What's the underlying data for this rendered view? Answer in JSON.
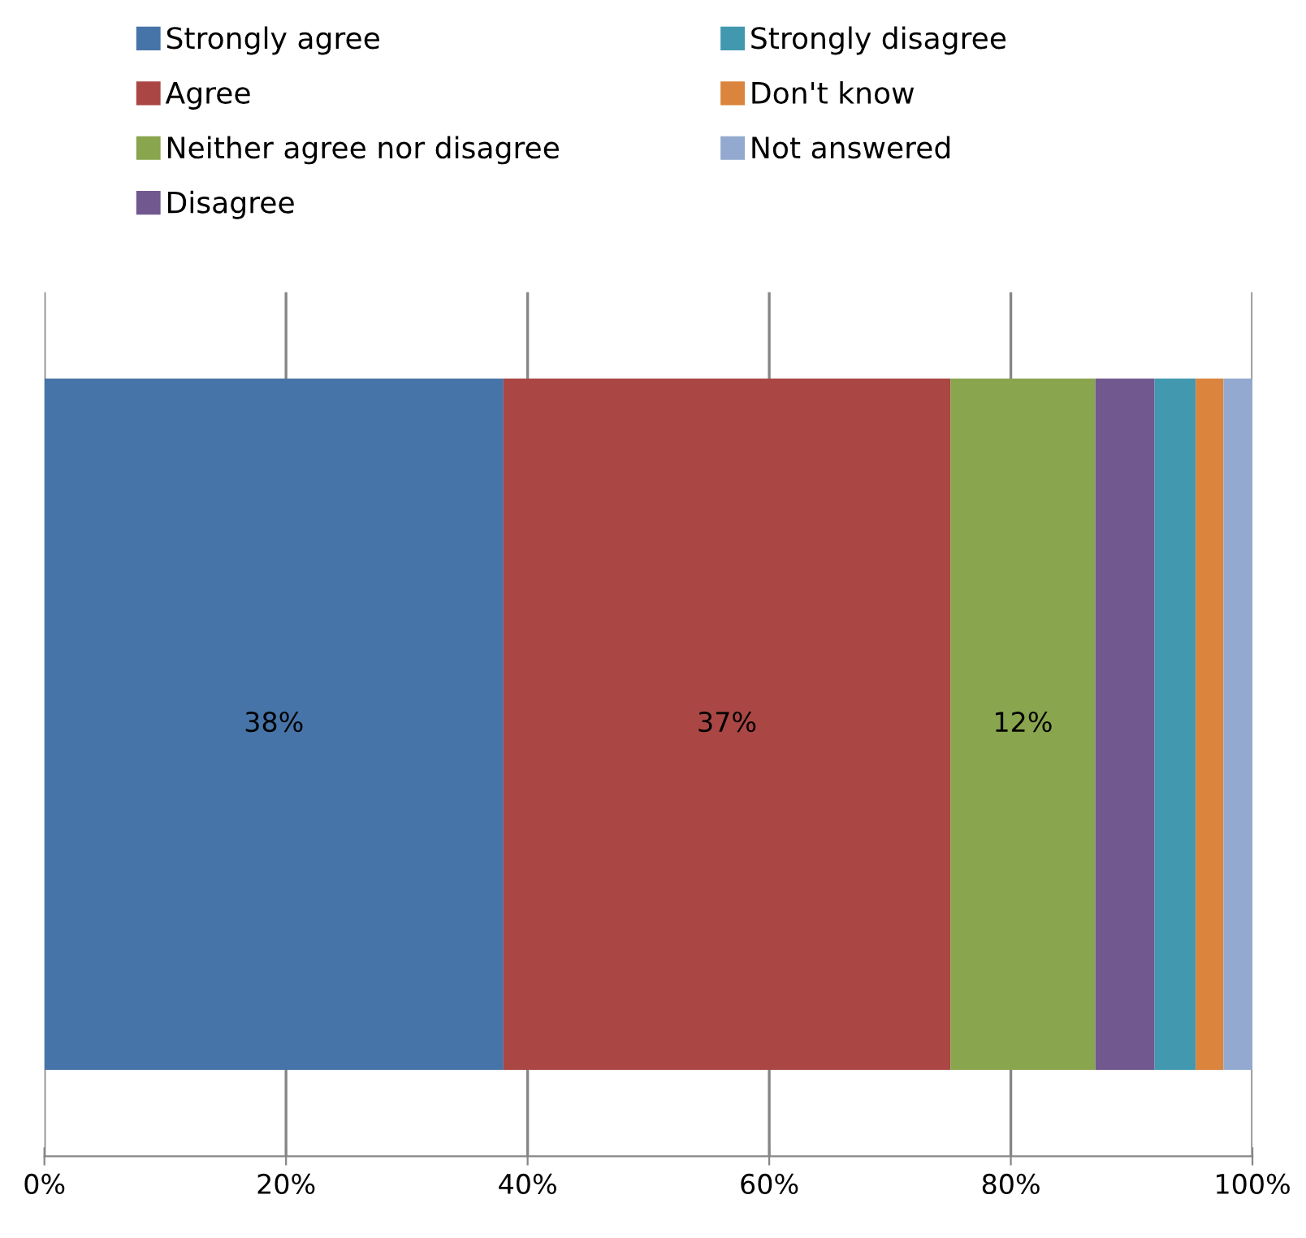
{
  "chart_data": {
    "type": "bar",
    "orientation": "horizontal",
    "stacked": true,
    "categories": [
      null
    ],
    "series": [
      {
        "name": "Strongly agree",
        "color": "#4674a8",
        "values": [
          38
        ],
        "value_labels": [
          "38%"
        ]
      },
      {
        "name": "Agree",
        "color": "#aa4744",
        "values": [
          37
        ],
        "value_labels": [
          "37%"
        ]
      },
      {
        "name": "Neither agree nor disagree",
        "color": "#89a54e",
        "values": [
          12
        ],
        "value_labels": [
          "12%"
        ]
      },
      {
        "name": "Disagree",
        "color": "#71588f",
        "values": [
          4.9
        ]
      },
      {
        "name": "Strongly disagree",
        "color": "#4198af",
        "values": [
          3.4
        ]
      },
      {
        "name": "Don't know",
        "color": "#db843d",
        "values": [
          2.3
        ]
      },
      {
        "name": "Not answered",
        "color": "#93a9cf",
        "values": [
          2.4
        ]
      }
    ],
    "xlim": [
      0,
      100
    ],
    "xticks": [
      {
        "value": 0,
        "label": "0%"
      },
      {
        "value": 20,
        "label": "20%"
      },
      {
        "value": 40,
        "label": "40%"
      },
      {
        "value": 60,
        "label": "60%"
      },
      {
        "value": 80,
        "label": "80%"
      },
      {
        "value": 100,
        "label": "100%"
      }
    ],
    "grid": "x",
    "legend": "top"
  }
}
